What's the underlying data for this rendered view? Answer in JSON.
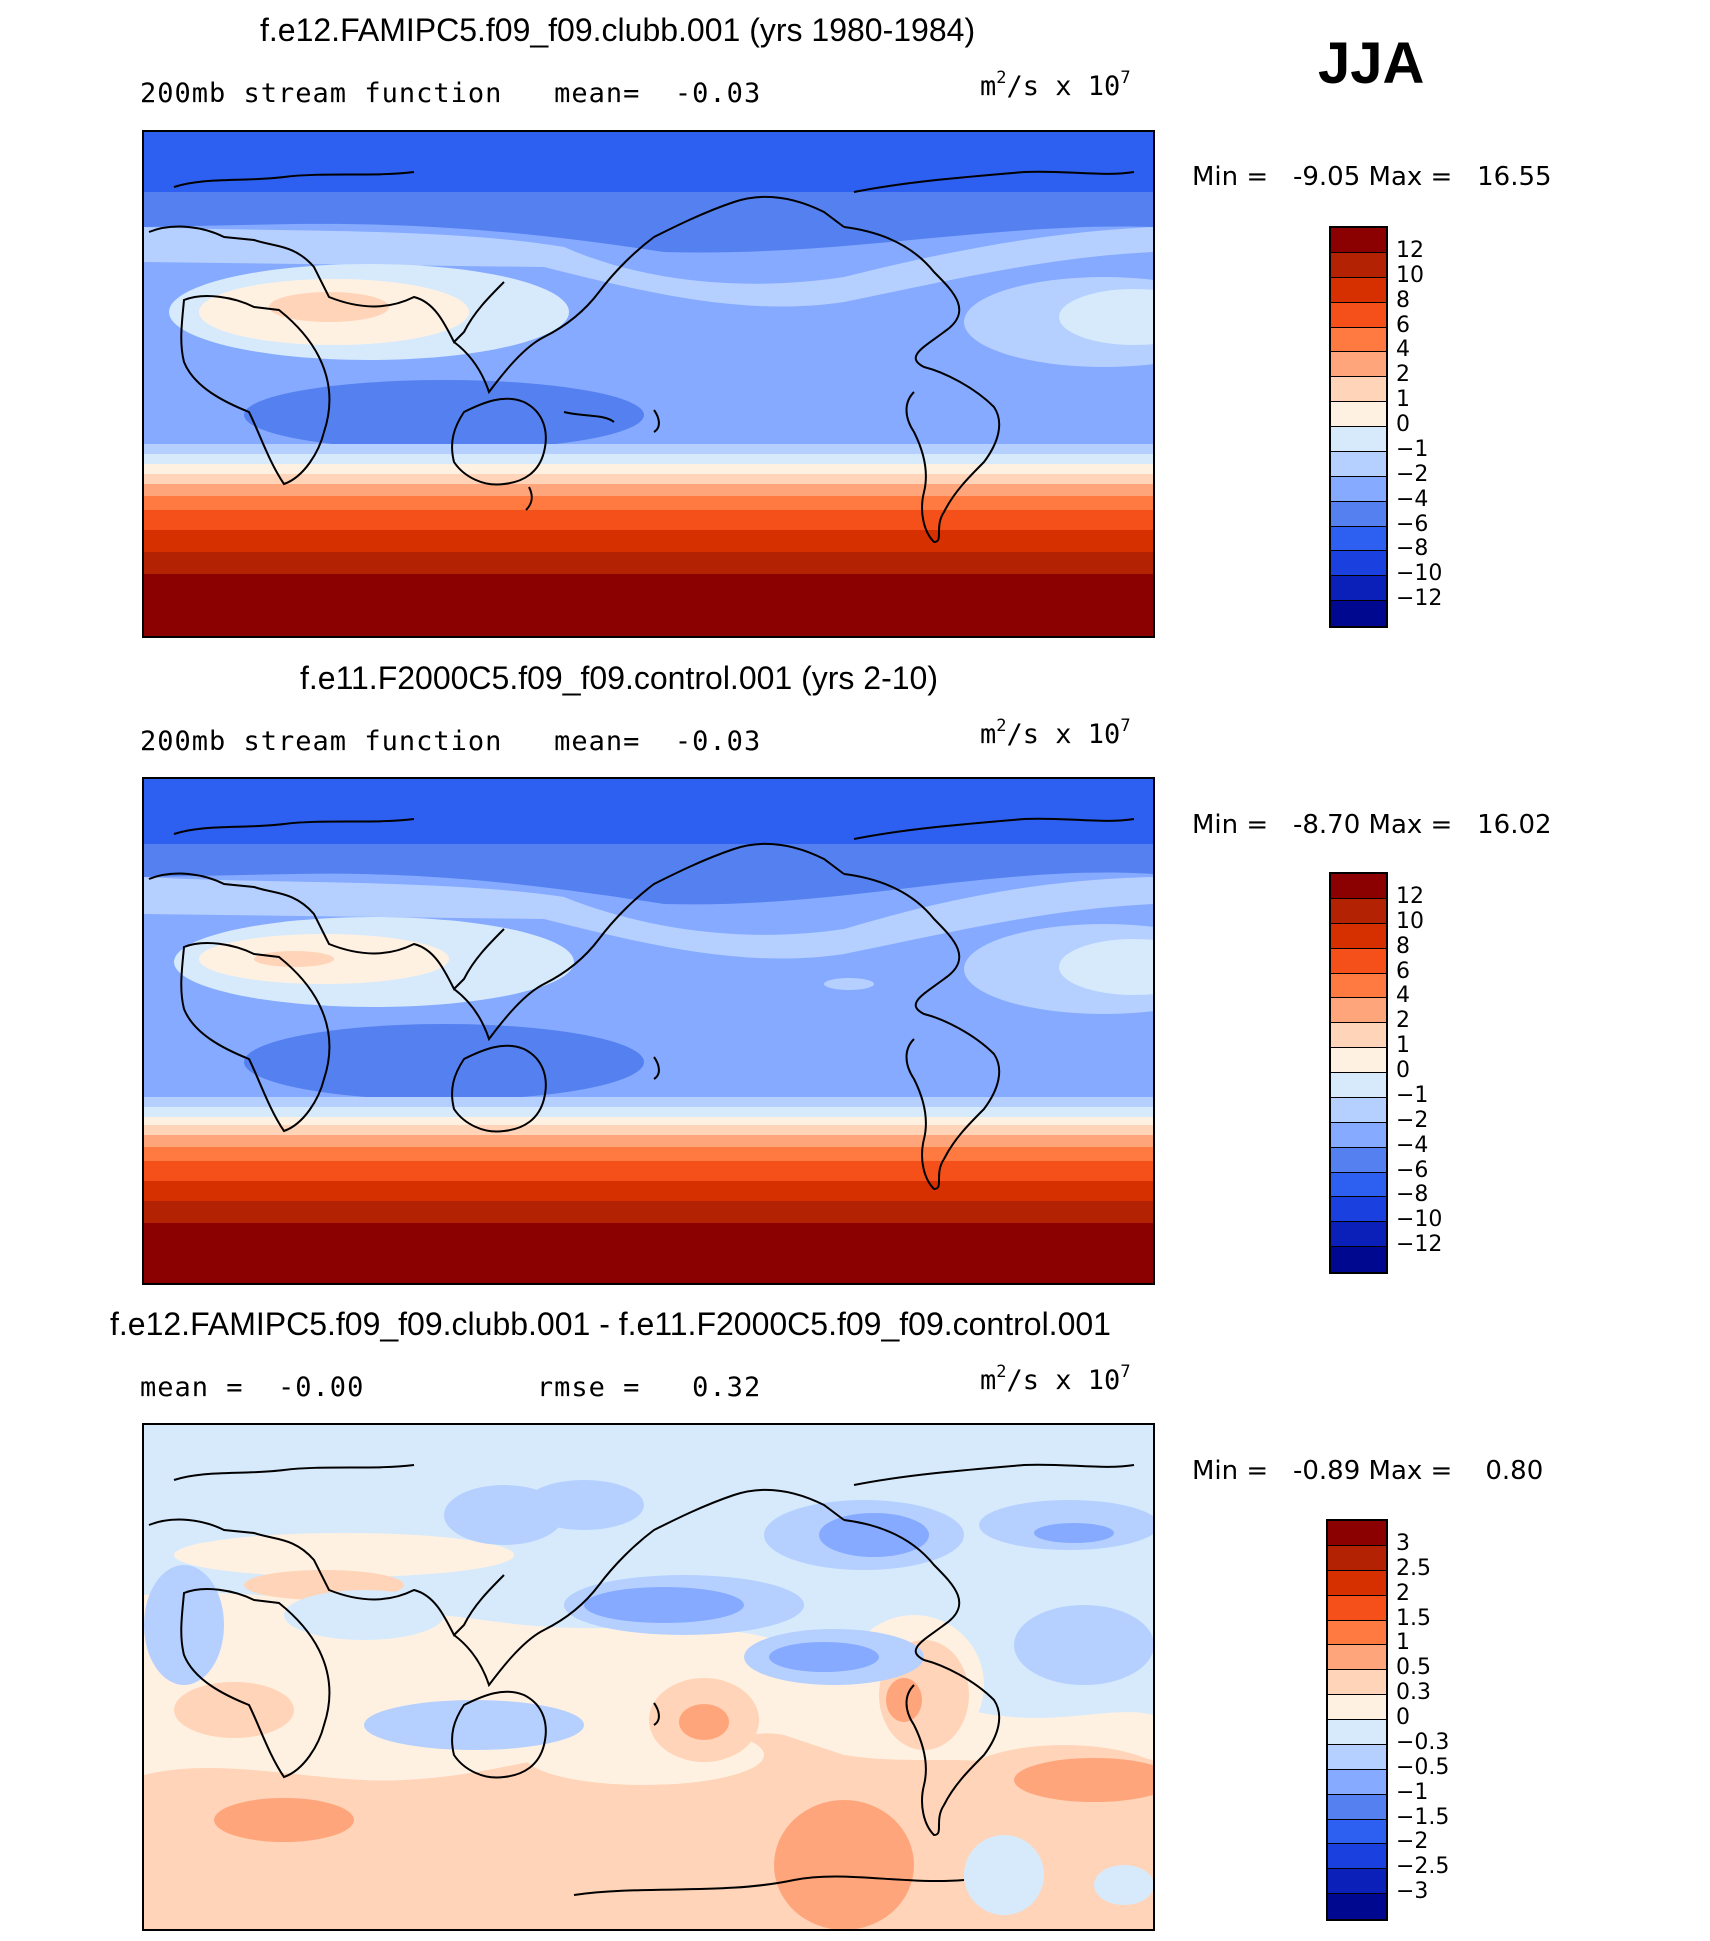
{
  "season": "JJA",
  "panels": [
    {
      "title": "f.e12.FAMIPC5.f09_f09.clubb.001 (yrs 1980-1984)",
      "subtitle": "200mb stream function   mean=  -0.03",
      "units_base": "m",
      "units_mid": "/s x 10",
      "units_exp1": "2",
      "units_exp2": "7",
      "minmax": "Min =   -9.05 Max =   16.55",
      "colorbar": {
        "colors": [
          "#8b0000",
          "#b22203",
          "#d63000",
          "#f5501a",
          "#ff7a40",
          "#ffa57c",
          "#ffd4b8",
          "#fff1e1",
          "#d6eafc",
          "#b5d0ff",
          "#86aaff",
          "#5581f0",
          "#2d5ff0",
          "#1a40e0",
          "#0a20b8",
          "#000890"
        ],
        "labels": [
          "12",
          "10",
          "8",
          "6",
          "4",
          "2",
          "1",
          "0",
          "−1",
          "−2",
          "−4",
          "−6",
          "−8",
          "−10",
          "−12"
        ]
      }
    },
    {
      "title": "f.e11.F2000C5.f09_f09.control.001 (yrs 2-10)",
      "subtitle": "200mb stream function   mean=  -0.03",
      "units_base": "m",
      "units_mid": "/s x 10",
      "units_exp1": "2",
      "units_exp2": "7",
      "minmax": "Min =   -8.70 Max =   16.02",
      "colorbar": {
        "colors": [
          "#8b0000",
          "#b22203",
          "#d63000",
          "#f5501a",
          "#ff7a40",
          "#ffa57c",
          "#ffd4b8",
          "#fff1e1",
          "#d6eafc",
          "#b5d0ff",
          "#86aaff",
          "#5581f0",
          "#2d5ff0",
          "#1a40e0",
          "#0a20b8",
          "#000890"
        ],
        "labels": [
          "12",
          "10",
          "8",
          "6",
          "4",
          "2",
          "1",
          "0",
          "−1",
          "−2",
          "−4",
          "−6",
          "−8",
          "−10",
          "−12"
        ]
      }
    },
    {
      "title": "f.e12.FAMIPC5.f09_f09.clubb.001 - f.e11.F2000C5.f09_f09.control.001",
      "subtitle": "mean =  -0.00          rmse =   0.32",
      "units_base": "m",
      "units_mid": "/s x 10",
      "units_exp1": "2",
      "units_exp2": "7",
      "minmax": "Min =   -0.89 Max =    0.80",
      "colorbar": {
        "colors": [
          "#8b0000",
          "#b22203",
          "#d63000",
          "#f5501a",
          "#ff7a40",
          "#ffa57c",
          "#ffd4b8",
          "#fff1e1",
          "#d6eafc",
          "#b5d0ff",
          "#86aaff",
          "#5581f0",
          "#2d5ff0",
          "#1a40e0",
          "#0a20b8",
          "#000890"
        ],
        "labels": [
          "3",
          "2.5",
          "2",
          "1.5",
          "1",
          "0.5",
          "0.3",
          "0",
          "−0.3",
          "−0.5",
          "−1",
          "−1.5",
          "−2",
          "−2.5",
          "−3"
        ]
      }
    }
  ]
}
